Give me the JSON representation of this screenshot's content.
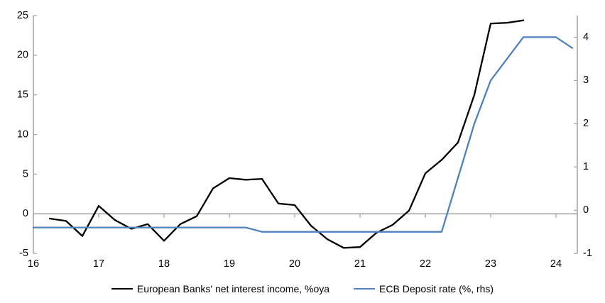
{
  "chart_data": {
    "type": "line",
    "legend_position": "bottom",
    "grid": "zero-line-only",
    "axis_color": "#A6A6A6",
    "x_axis": {
      "tick_values": [
        16,
        17,
        18,
        19,
        20,
        21,
        22,
        23,
        24
      ],
      "tick_labels": [
        "16",
        "17",
        "18",
        "19",
        "20",
        "21",
        "22",
        "23",
        "24"
      ],
      "range": [
        16,
        24.34
      ]
    },
    "y_axis_left": {
      "tick_values": [
        25,
        20,
        15,
        10,
        5,
        0,
        -5
      ],
      "tick_labels": [
        "25",
        "20",
        "15",
        "10",
        "5",
        "0",
        "-5"
      ],
      "range": [
        -5,
        25
      ]
    },
    "y_axis_right": {
      "tick_values": [
        4,
        3,
        2,
        1,
        0,
        -1
      ],
      "tick_labels": [
        "4",
        "3",
        "2",
        "1",
        "0",
        "-1"
      ],
      "range": [
        -1,
        4.5
      ]
    },
    "series": [
      {
        "name": "European Banks' net interest income, %oya",
        "color": "#000000",
        "axis": "left",
        "points": [
          [
            16.25,
            -0.6
          ],
          [
            16.5,
            -0.9
          ],
          [
            16.75,
            -2.8
          ],
          [
            17.0,
            1.0
          ],
          [
            17.25,
            -0.8
          ],
          [
            17.5,
            -1.9
          ],
          [
            17.75,
            -1.3
          ],
          [
            18.0,
            -3.4
          ],
          [
            18.25,
            -1.3
          ],
          [
            18.5,
            -0.3
          ],
          [
            18.75,
            3.2
          ],
          [
            19.0,
            4.5
          ],
          [
            19.25,
            4.3
          ],
          [
            19.5,
            4.4
          ],
          [
            19.75,
            1.3
          ],
          [
            20.0,
            1.1
          ],
          [
            20.25,
            -1.5
          ],
          [
            20.5,
            -3.2
          ],
          [
            20.75,
            -4.3
          ],
          [
            21.0,
            -4.2
          ],
          [
            21.25,
            -2.4
          ],
          [
            21.5,
            -1.4
          ],
          [
            21.75,
            0.4
          ],
          [
            22.0,
            5.1
          ],
          [
            22.25,
            6.8
          ],
          [
            22.5,
            9.0
          ],
          [
            22.75,
            15.0
          ],
          [
            23.0,
            24.0
          ],
          [
            23.25,
            24.1
          ],
          [
            23.5,
            24.4
          ]
        ]
      },
      {
        "name": "ECB Deposit rate (%, rhs)",
        "color": "#4E81BD",
        "axis": "right",
        "points": [
          [
            16.0,
            -0.4
          ],
          [
            16.25,
            -0.4
          ],
          [
            16.5,
            -0.4
          ],
          [
            16.75,
            -0.4
          ],
          [
            17.0,
            -0.4
          ],
          [
            17.25,
            -0.4
          ],
          [
            17.5,
            -0.4
          ],
          [
            17.75,
            -0.4
          ],
          [
            18.0,
            -0.4
          ],
          [
            18.25,
            -0.4
          ],
          [
            18.5,
            -0.4
          ],
          [
            18.75,
            -0.4
          ],
          [
            19.0,
            -0.4
          ],
          [
            19.25,
            -0.4
          ],
          [
            19.5,
            -0.5
          ],
          [
            19.75,
            -0.5
          ],
          [
            20.0,
            -0.5
          ],
          [
            20.25,
            -0.5
          ],
          [
            20.5,
            -0.5
          ],
          [
            20.75,
            -0.5
          ],
          [
            21.0,
            -0.5
          ],
          [
            21.25,
            -0.5
          ],
          [
            21.5,
            -0.5
          ],
          [
            21.75,
            -0.5
          ],
          [
            22.0,
            -0.5
          ],
          [
            22.25,
            -0.5
          ],
          [
            22.5,
            0.75
          ],
          [
            22.75,
            2.0
          ],
          [
            23.0,
            3.0
          ],
          [
            23.25,
            3.5
          ],
          [
            23.5,
            4.0
          ],
          [
            23.75,
            4.0
          ],
          [
            24.0,
            4.0
          ],
          [
            24.25,
            3.75
          ]
        ]
      }
    ]
  },
  "legend": {
    "items": [
      {
        "label": "European Banks' net interest income, %oya"
      },
      {
        "label": "ECB Deposit rate (%, rhs)"
      }
    ]
  }
}
